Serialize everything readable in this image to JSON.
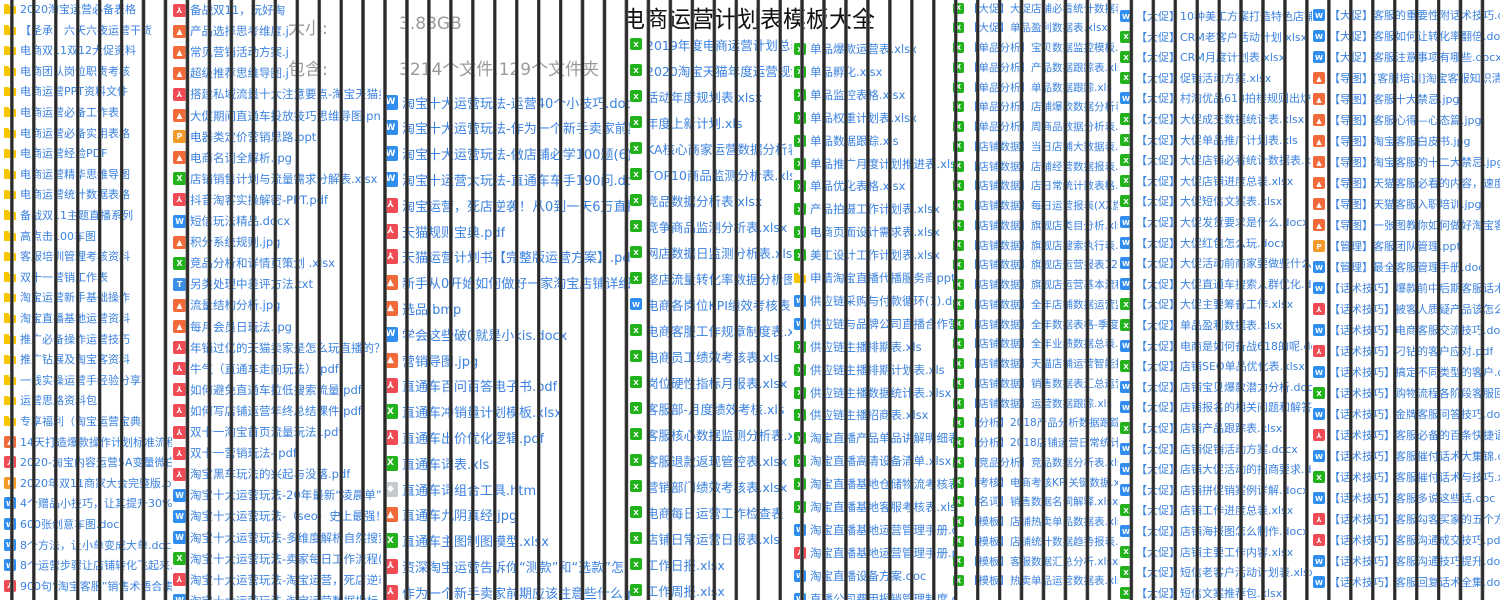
{
  "title": "电商运营计划表模板大全",
  "info": {
    "size_label": "大小:",
    "size_value": "3.88GB",
    "contains_label": "包含:",
    "contains_value": "3214个文件,129个文件夹"
  },
  "colors": {
    "link_text": "#3b82e0",
    "folder": "#f7c600",
    "pdf": "#f04b55",
    "img": "#f26a3a",
    "ppt": "#f39a2b",
    "xls": "#22b31c",
    "doc": "#2f8ef0",
    "txt": "#3a8ee6",
    "html": "#c5cad1",
    "stripe": "#2a2a2a"
  },
  "columns": [
    {
      "items": [
        {
          "icon": "folder",
          "name": "2020淘宝运营必备表格"
        },
        {
          "icon": "folder",
          "name": "【圣承】六天六夜运营干货"
        },
        {
          "icon": "folder",
          "name": "电商双11双12大促资料"
        },
        {
          "icon": "folder",
          "name": "电商团队岗位职责考核"
        },
        {
          "icon": "folder",
          "name": "电商运营PPT资料文件"
        },
        {
          "icon": "folder",
          "name": "电商运营必备工作表"
        },
        {
          "icon": "folder",
          "name": "电商运营必备实用表格"
        },
        {
          "icon": "folder",
          "name": "电商运营经验PDF"
        },
        {
          "icon": "folder",
          "name": "电商运营精华思维导图"
        },
        {
          "icon": "folder",
          "name": "电商运营统计数据表格"
        },
        {
          "icon": "folder",
          "name": "备战双11主题直播系列"
        },
        {
          "icon": "folder",
          "name": "高点击100车图"
        },
        {
          "icon": "folder",
          "name": "客服培训管理考核资料"
        },
        {
          "icon": "folder",
          "name": "双十一营销工作表"
        },
        {
          "icon": "folder",
          "name": "淘宝运营新手基础操作"
        },
        {
          "icon": "folder",
          "name": "淘宝直播基地运营资料"
        },
        {
          "icon": "folder",
          "name": "推广必备操作运营技巧"
        },
        {
          "icon": "folder",
          "name": "推广钻展及淘宝客资料"
        },
        {
          "icon": "folder",
          "name": "一线实操运营手经验分享"
        },
        {
          "icon": "folder",
          "name": "运营思路资料包"
        },
        {
          "icon": "folder",
          "name": "专享福利（淘宝运营宝典）"
        },
        {
          "icon": "img",
          "name": "14天打造爆款操作计划标准流程表.p"
        },
        {
          "icon": "pdf",
          "name": "2020-淘宝内容运营5A变量微白皮书"
        },
        {
          "icon": "ppt",
          "name": "2020年双11商家大会完整版.pptx"
        },
        {
          "icon": "doc",
          "name": "4个赠品小技巧，让其提升30%复购率"
        },
        {
          "icon": "doc",
          "name": "600张创意车图.doc"
        },
        {
          "icon": "doc",
          "name": "8个方法，让小单变成大单.docx"
        },
        {
          "icon": "doc",
          "name": "8个运营步骤让店铺转化飞起来.docx"
        },
        {
          "icon": "pdf",
          "name": "900句“淘宝客服”销售术语合集!)"
        },
        {
          "icon": "img",
          "name": "爆款规划与推广.jpg"
        }
      ]
    },
    {
      "items": [
        {
          "icon": "pdf",
          "name": "备战双11，玩好淘"
        },
        {
          "icon": "img",
          "name": "产品选择思考维度.j"
        },
        {
          "icon": "img",
          "name": "常见营销活动方案.j"
        },
        {
          "icon": "img",
          "name": "超级推荐思维导图.j"
        },
        {
          "icon": "pdf",
          "name": "搭建私域流量十大注意要点-淘宝天猫卖家专"
        },
        {
          "icon": "img",
          "name": "大促期间直通车投放技巧思维导图.png"
        },
        {
          "icon": "ppt",
          "name": "电器类定价营销思路.ppt"
        },
        {
          "icon": "img",
          "name": "电商名词全解析.jpg"
        },
        {
          "icon": "xls",
          "name": "店铺销售计划与流量需求分解表.xlsx"
        },
        {
          "icon": "pdf",
          "name": "抖音淘客实操解密-PPT.pdf"
        },
        {
          "icon": "doc",
          "name": "短信玩法精品.docx"
        },
        {
          "icon": "img",
          "name": "积分系统规则.jpg"
        },
        {
          "icon": "xls",
          "name": "竞品分析和详情页策划 .xlsx"
        },
        {
          "icon": "txt",
          "name": "另类处理中差评方法.txt"
        },
        {
          "icon": "img",
          "name": "流量结构分析.jpg"
        },
        {
          "icon": "img",
          "name": "每月会员日玩法.jpg"
        },
        {
          "icon": "pdf",
          "name": "年销过亿的天猫卖家是怎么玩直播的？SOP"
        },
        {
          "icon": "pdf",
          "name": "牛气（直通车走向玩法）.pdf"
        },
        {
          "icon": "pdf",
          "name": "如何避免直通车拉低搜索流量.pdf"
        },
        {
          "icon": "pdf",
          "name": "如何写店铺运营年终总结课件.pdf"
        },
        {
          "icon": "pdf",
          "name": "双十一淘宝首页流量玩法 .pdf"
        },
        {
          "icon": "pdf",
          "name": "双十一营销玩法-.pdf"
        },
        {
          "icon": "pdf",
          "name": "淘宝黑车玩法的兴起与没落.pdf"
        },
        {
          "icon": "doc",
          "name": "淘宝十大运营玩法-20年最新“凌晨单”玩法"
        },
        {
          "icon": "doc",
          "name": "淘宝十大运营玩法-（seo）史上最强！3步搞"
        },
        {
          "icon": "doc",
          "name": "淘宝十大运营玩法-多维度解析自然搜索流量"
        },
        {
          "icon": "xls",
          "name": "淘宝十大运营玩法-卖家每日工作流程(3).xls"
        },
        {
          "icon": "pdf",
          "name": "淘宝十大运营玩法-淘宝运营，死店逆袭！从"
        },
        {
          "icon": "doc",
          "name": "淘宝十大运营玩法-淘宝运营数据指标"
        }
      ]
    },
    {
      "items": [
        {
          "icon": "doc",
          "name": "淘宝十大运营玩法-运营40个小技巧.doc"
        },
        {
          "icon": "doc",
          "name": "淘宝十大运营玩法-作为一个新手卖家前期应"
        },
        {
          "icon": "doc",
          "name": "淘宝十大运营玩法-做店铺必学100题(6).doc"
        },
        {
          "icon": "doc",
          "name": "淘宝十运营大玩法-直通车车手190问.docx"
        },
        {
          "icon": "pdf",
          "name": "淘宝运营，死店逆袭！从0到一天6万直接上"
        },
        {
          "icon": "pdf",
          "name": "天猫规则宝典.pdf"
        },
        {
          "icon": "pdf",
          "name": "天猫运营计划书【完整版运营方案】.pdf"
        },
        {
          "icon": "img",
          "name": "新手从0开始如何做好一家淘宝店铺详细计划"
        },
        {
          "icon": "img",
          "name": "选品.bmp"
        },
        {
          "icon": "doc",
          "name": "学会这些破0就是小kis.docx"
        },
        {
          "icon": "img",
          "name": "营销导图.jpg"
        },
        {
          "icon": "pdf",
          "name": "直通车百问百答电子书.pdf"
        },
        {
          "icon": "xls",
          "name": "直通车冲销量计划模板.xlsx"
        },
        {
          "icon": "pdf",
          "name": "直通车出价优化逻辑.pdf"
        },
        {
          "icon": "xls",
          "name": "直通车词表.xls"
        },
        {
          "icon": "html",
          "name": "直通车词组合工具.html"
        },
        {
          "icon": "img",
          "name": "直通车九阴真经.jpg"
        },
        {
          "icon": "xls",
          "name": "直通车主图制图模型.xlsx"
        },
        {
          "icon": "pdf",
          "name": "资深淘宝运营告诉你“测款”和“选款”怎"
        },
        {
          "icon": "pdf",
          "name": "作为一个新手卖家前期应该注意些什么.pdf"
        }
      ]
    },
    {
      "items": [
        {
          "icon": "xls",
          "name": "2019年度电商运营计划总表.x"
        },
        {
          "icon": "xls",
          "name": "2020淘宝天猫年度运营规划.x"
        },
        {
          "icon": "xls",
          "name": "活动年度规划表.xlsx"
        },
        {
          "icon": "xls",
          "name": "年度上新计划.xls"
        },
        {
          "icon": "xls",
          "name": "KA核心商家运营数据分析表"
        },
        {
          "icon": "xls",
          "name": "TOP10商品监测分析表.xlsx"
        },
        {
          "icon": "xls",
          "name": "竞品数据分析表.xlsx"
        },
        {
          "icon": "xls",
          "name": "竞争商品监测分析表.xlsx"
        },
        {
          "icon": "xls",
          "name": "网店数据日监测分析表.xlsx"
        },
        {
          "icon": "xls",
          "name": "整店流量转化率数据分析图.x"
        },
        {
          "icon": "doc",
          "name": "电商各岗位KPI绩效考核表"
        },
        {
          "icon": "xls",
          "name": "电商客服工作规章制度表.x"
        },
        {
          "icon": "xls",
          "name": "电商员工绩效考核表.xls"
        },
        {
          "icon": "xls",
          "name": "岗位硬性指标月报表.xlsx"
        },
        {
          "icon": "xls",
          "name": "客服部-月度绩效考核.xls"
        },
        {
          "icon": "xls",
          "name": "客服核心数据监测分析表.x"
        },
        {
          "icon": "xls",
          "name": "客服退款返现管控表.xlsx"
        },
        {
          "icon": "xls",
          "name": "营销部门绩效考核表.xlsx"
        },
        {
          "icon": "xls",
          "name": "电商每日运营工作检查表"
        },
        {
          "icon": "xls",
          "name": "店铺日常运营日报表.xls"
        },
        {
          "icon": "xls",
          "name": "工作日报.xlsx"
        },
        {
          "icon": "xls",
          "name": "工作周报.xlsx"
        }
      ]
    },
    {
      "items": [
        {
          "icon": "xls",
          "name": "单品爆款运营表.xlsx"
        },
        {
          "icon": "xls",
          "name": "单品孵化.xlsx"
        },
        {
          "icon": "xls",
          "name": "单品监控表格.xlsx"
        },
        {
          "icon": "xls",
          "name": "单品权重计划表.xlsx"
        },
        {
          "icon": "xls",
          "name": "单品数据跟踪.xls"
        },
        {
          "icon": "xls",
          "name": "单品推广月度计划推进表.xls"
        },
        {
          "icon": "xls",
          "name": "单品优化表格.xlsx"
        },
        {
          "icon": "xls",
          "name": "产品拍摄工作计划表.xlsx"
        },
        {
          "icon": "xls",
          "name": "电商页面设计需求表.xlsx"
        },
        {
          "icon": "xls",
          "name": "美工设计工作计划表.xlsx"
        },
        {
          "icon": "folder",
          "name": "申请淘宝直播代播服务商ppt资"
        },
        {
          "icon": "doc",
          "name": "供应链采购与付款循环(1).doc"
        },
        {
          "icon": "doc",
          "name": "供应链与品牌公司直播合作营"
        },
        {
          "icon": "xls",
          "name": "供应链主播排期表.xls"
        },
        {
          "icon": "xls",
          "name": "供应链主播排期计划表.xls"
        },
        {
          "icon": "xls",
          "name": "供应链主播数据统计表.xlsx"
        },
        {
          "icon": "xls",
          "name": "供应链主播招商表.xlsx"
        },
        {
          "icon": "xls",
          "name": "淘宝直播产品单品讲解明细表."
        },
        {
          "icon": "xls",
          "name": "淘宝直播高清设备清单.xlsx"
        },
        {
          "icon": "xls",
          "name": "淘宝直播基地仓储物流考核表."
        },
        {
          "icon": "xls",
          "name": "淘宝直播基地客服考核表.xlsx"
        },
        {
          "icon": "doc",
          "name": "淘宝直播基地运营管理手册.doc"
        },
        {
          "icon": "pdf",
          "name": "淘宝直播基地运营管理手册.pdf"
        },
        {
          "icon": "doc",
          "name": "淘宝直播设备方案.doc"
        },
        {
          "icon": "doc",
          "name": "直播公司费用报销管理制度.docx"
        }
      ]
    },
    {
      "items": [
        {
          "icon": "xls",
          "name": "【大促】大促店铺必看统计数据表.xlsx"
        },
        {
          "icon": "xls",
          "name": "【大促】单品盈利数据表.xlsx"
        },
        {
          "icon": "xls",
          "name": "【单品分析】宝贝数据监控模板.xlsx"
        },
        {
          "icon": "xls",
          "name": "【单品分析】产品数据跟踪表.xlsx"
        },
        {
          "icon": "xls",
          "name": "【单品分析】单品数据跟踪.xls"
        },
        {
          "icon": "xls",
          "name": "【单品分析】店铺爆款数据分析表格.xls"
        },
        {
          "icon": "xls",
          "name": "【单品分析】周商品数据分析表.xlsx"
        },
        {
          "icon": "xls",
          "name": "【店铺数据】当日店铺大数据表.xls"
        },
        {
          "icon": "xls",
          "name": "【店铺数据】店铺经营数据报表.xls"
        },
        {
          "icon": "xls",
          "name": "【店铺数据】店日常统计数表格.xls"
        },
        {
          "icon": "xls",
          "name": "【店铺数据】每日运营报表(XX旗舰).xl"
        },
        {
          "icon": "xls",
          "name": "【店铺数据】旗舰店类目分析.xlsx"
        },
        {
          "icon": "xls",
          "name": "【店铺数据】旗舰店搜索执行表.xlsx"
        },
        {
          "icon": "xls",
          "name": "【店铺数据】旗舰店运营报表12月.xls"
        },
        {
          "icon": "xls",
          "name": "【店铺数据】旗舰店运营基本流程.xls"
        },
        {
          "icon": "xls",
          "name": "【店铺数据】全年店铺数据运营监控表"
        },
        {
          "icon": "xls",
          "name": "【店铺数据】全年数据表格-季度新品.x"
        },
        {
          "icon": "xls",
          "name": "【店铺数据】全年业绩数据总表.xlsx"
        },
        {
          "icon": "xls",
          "name": "【店铺数据】天猫店铺运营智能报表.x"
        },
        {
          "icon": "xls",
          "name": "【店铺数据】销售数据表汇总运营部"
        },
        {
          "icon": "xls",
          "name": "【店铺数据】运营数据跟踪.xls"
        },
        {
          "icon": "xls",
          "name": "【分析】2018产品分析数据跟踪表.xls"
        },
        {
          "icon": "xls",
          "name": "【分析】2018店铺运营日常统计表格.x"
        },
        {
          "icon": "xls",
          "name": "【竞品分析】竞品数据分析表.xlsx"
        },
        {
          "icon": "xls",
          "name": "【考核】电商考核KPI关键数据.xls"
        },
        {
          "icon": "xls",
          "name": "【名词】销售数据名词解释.xlsx"
        },
        {
          "icon": "xls",
          "name": "【模板】店铺热卖单品数据表.xls"
        },
        {
          "icon": "xls",
          "name": "【模板】店铺统计数据趋势报表.xls"
        },
        {
          "icon": "xls",
          "name": "【模板】客服数据汇总分析.xlsx"
        },
        {
          "icon": "xls",
          "name": "【模板】热卖单品运营数据表.xls"
        }
      ]
    },
    {
      "items": [
        {
          "icon": "doc",
          "name": "【大促】10种美工方案打造特色店铺.docx"
        },
        {
          "icon": "xls",
          "name": "【大促】CRM老客户活动计划.xlsx"
        },
        {
          "icon": "xls",
          "name": "【大促】CRM月度计划表.xlsx"
        },
        {
          "icon": "xls",
          "name": "【大促】促销活动方案.xlsx"
        },
        {
          "icon": "doc",
          "name": "【大促】村淘优品618拍楼规则出炉.docx"
        },
        {
          "icon": "xls",
          "name": "【大促】大促成交数据统计表.xlsx"
        },
        {
          "icon": "xls",
          "name": "【大促】大促单品推广计划表.xls"
        },
        {
          "icon": "xls",
          "name": "【大促】大促店铺必看统计数据表.xlsx"
        },
        {
          "icon": "xls",
          "name": "【大促】大促店铺进度总表.xlsx"
        },
        {
          "icon": "xls",
          "name": "【大促】大促短信文案表.xlsx"
        },
        {
          "icon": "doc",
          "name": "【大促】大促发货要求是什么.docx"
        },
        {
          "icon": "doc",
          "name": "【大促】大促红包怎么玩.docx"
        },
        {
          "icon": "doc",
          "name": "【大促】大促活动前商家要做些什么.docx"
        },
        {
          "icon": "doc",
          "name": "【大促】大促直通车搜索人群优化.docx"
        },
        {
          "icon": "xls",
          "name": "【大促】大促主要筹备工作.xlsx"
        },
        {
          "icon": "xls",
          "name": "【大促】单品盈利数据表.xlsx"
        },
        {
          "icon": "doc",
          "name": "【大促】电商是如何备战618的呢.docx"
        },
        {
          "icon": "xls",
          "name": "【大促】店铺SEO单品优化表.xlsx"
        },
        {
          "icon": "doc",
          "name": "【大促】店铺宝贝爆款潜力分析.docx"
        },
        {
          "icon": "doc",
          "name": "【大促】店铺报名的相关问题和解答.docx"
        },
        {
          "icon": "xls",
          "name": "【大促】店铺产品跟踪表.xlsx"
        },
        {
          "icon": "doc",
          "name": "【大促】店铺促销活动方案.docx"
        },
        {
          "icon": "doc",
          "name": "【大促】店铺大促活动的招商要求.docx"
        },
        {
          "icon": "doc",
          "name": "【大促】店铺拼促销案例详解.docx"
        },
        {
          "icon": "xls",
          "name": "【大促】店铺工作进度总表.xlsx"
        },
        {
          "icon": "doc",
          "name": "【大促】店铺海报图怎么制作.docx"
        },
        {
          "icon": "xls",
          "name": "【大促】店铺主要工作内容.xlsx"
        },
        {
          "icon": "xls",
          "name": "【大促】短信老客户活动计划表.xlsx"
        },
        {
          "icon": "xls",
          "name": "【大促】短信文案推荐包.xlsx"
        }
      ]
    },
    {
      "items": [
        {
          "icon": "doc",
          "name": "【大促】客服的重要性附话术技巧.docx"
        },
        {
          "icon": "doc",
          "name": "【大促】客服如何让转化率翻倍.docx"
        },
        {
          "icon": "doc",
          "name": "【大促】客服注意事项有哪些.docx"
        },
        {
          "icon": "img",
          "name": "【导图】[客服培训]淘宝客服知识清单.jpg"
        },
        {
          "icon": "img",
          "name": "【导图】客服十大禁忌.jpg"
        },
        {
          "icon": "img",
          "name": "【导图】客服心得—心态篇.jpg"
        },
        {
          "icon": "img",
          "name": "【导图】淘宝客服白皮书.jpg"
        },
        {
          "icon": "img",
          "name": "【导图】淘宝客服的十二大禁忌.jpg"
        },
        {
          "icon": "img",
          "name": "【导图】天猫客服必看的内容，速度ma"
        },
        {
          "icon": "img",
          "name": "【导图】天猫客服入职培训.jpg"
        },
        {
          "icon": "img",
          "name": "【导图】一张图教你如何做好淘宝客服"
        },
        {
          "icon": "ppt",
          "name": "【管理】客服团队管理.ppt"
        },
        {
          "icon": "doc",
          "name": "【管理】最全客服管理手册.doc"
        },
        {
          "icon": "doc",
          "name": "【话术技巧】爆款前中后期客服话术.do"
        },
        {
          "icon": "pdf",
          "name": "【话术技巧】被客人质疑产品该怎么回复"
        },
        {
          "icon": "doc",
          "name": "【话术技巧】电商客服交流技巧.docx"
        },
        {
          "icon": "pdf",
          "name": "【话术技巧】刁钻的客户应对.pdf"
        },
        {
          "icon": "doc",
          "name": "【话术技巧】搞定不同类型的客户.docx"
        },
        {
          "icon": "xls",
          "name": "【话术技巧】购物流程各阶段客服回复话"
        },
        {
          "icon": "doc",
          "name": "【话术技巧】金牌客服问答技巧.docx"
        },
        {
          "icon": "pdf",
          "name": "【话术技巧】客服必备的百条快捷语.pdf"
        },
        {
          "icon": "doc",
          "name": "【话术技巧】客服催付话术大集锦.docx"
        },
        {
          "icon": "xls",
          "name": "【话术技巧】客服催付话术与技巧.xls"
        },
        {
          "icon": "doc",
          "name": "【话术技巧】客服多说这些话.doc"
        },
        {
          "icon": "pdf",
          "name": "【话术技巧】客服勾客买家的五个方法.pdf"
        },
        {
          "icon": "pdf",
          "name": "【话术技巧】客服沟通成交技巧.pdf"
        },
        {
          "icon": "doc",
          "name": "【话术技巧】客服沟通技巧提升.docx"
        },
        {
          "icon": "doc",
          "name": "【话术技巧】客服回复话术全集.doc"
        }
      ]
    }
  ]
}
